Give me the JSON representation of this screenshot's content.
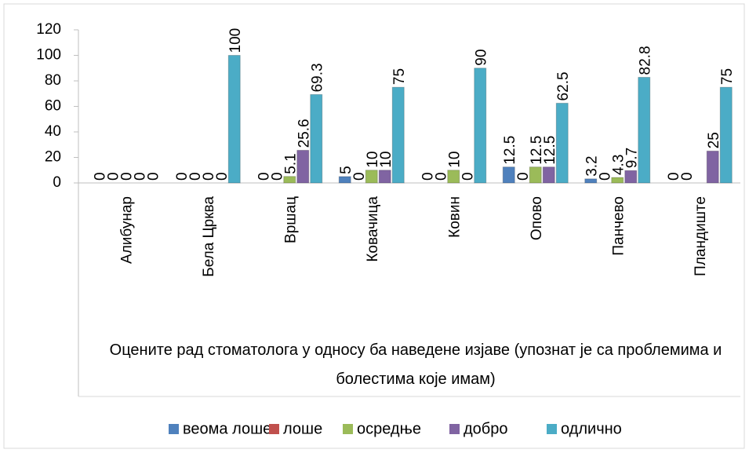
{
  "chart_data": {
    "type": "bar",
    "x_title": "Оцените рад стоматолога у односу ба наведене изјаве (упознат је са проблемима и болестима које имам)",
    "categories": [
      "Алибунар",
      "Бела Црква",
      "Вршац",
      "Ковачица",
      "Ковин",
      "Опово",
      "Панчево",
      "Пландиште"
    ],
    "series": [
      {
        "name": "веома лоше",
        "color": "#4f81bd",
        "values": [
          0,
          0,
          0,
          5,
          0,
          12.5,
          3.2,
          0
        ]
      },
      {
        "name": "лоше",
        "color": "#c0504d",
        "values": [
          0,
          0,
          0,
          0,
          0,
          0,
          0,
          0
        ]
      },
      {
        "name": "осредње",
        "color": "#9bbb59",
        "values": [
          0,
          0,
          5.1,
          10,
          10,
          12.5,
          4.3,
          null
        ]
      },
      {
        "name": "добро",
        "color": "#8064a2",
        "values": [
          0,
          0,
          25.6,
          10,
          0,
          12.5,
          9.7,
          25
        ]
      },
      {
        "name": "одлично",
        "color": "#4bacc6",
        "values": [
          0,
          100,
          69.3,
          75,
          90,
          62.5,
          82.8,
          75
        ]
      }
    ],
    "ylim": [
      0,
      120
    ],
    "yticks": [
      0,
      20,
      40,
      60,
      80,
      100,
      120
    ],
    "legend": "bottom"
  }
}
